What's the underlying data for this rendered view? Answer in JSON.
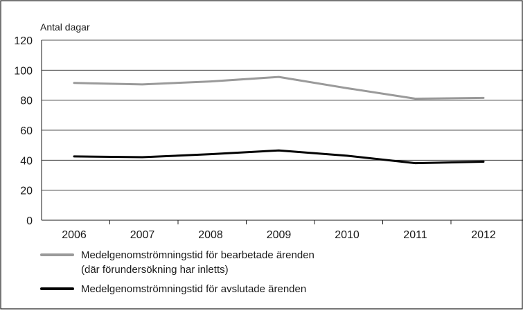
{
  "chart_data": {
    "type": "line",
    "ylabel": "Antal dagar",
    "ylim": [
      0,
      120
    ],
    "yticks": [
      0,
      20,
      40,
      60,
      80,
      100,
      120
    ],
    "grid": true,
    "legend_position": "bottom-left",
    "categories": [
      "2006",
      "2007",
      "2008",
      "2009",
      "2010",
      "2011",
      "2012"
    ],
    "series": [
      {
        "name_line1": "Medelgenomströmningstid för bearbetade ärenden",
        "name_line2": "(där förundersökning har inletts)",
        "color": "#9a9a9a",
        "values": [
          91.5,
          90.5,
          92.5,
          95.5,
          88,
          81,
          81.5
        ]
      },
      {
        "name_line1": "Medelgenomströmningstid för avslutade ärenden",
        "name_line2": "",
        "color": "#000000",
        "values": [
          42.5,
          42,
          44,
          46.5,
          43,
          38,
          39
        ]
      }
    ]
  }
}
